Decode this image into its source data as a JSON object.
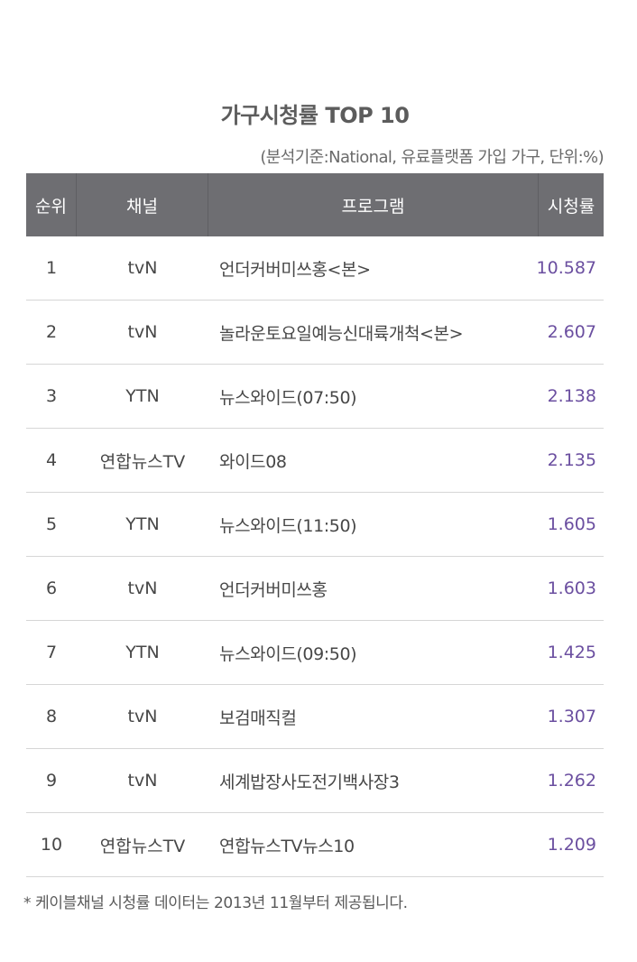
{
  "title": "가구시청률 TOP 10",
  "subtitle": "(분석기준:National, 유료플랫폼 가입 가구, 단위:%)",
  "table": {
    "headers": {
      "rank": "순위",
      "channel": "채널",
      "program": "프로그램",
      "rating": "시청률"
    },
    "rows": [
      {
        "rank": "1",
        "channel": "tvN",
        "program": "언더커버미쓰홍<본>",
        "rating": "10.587"
      },
      {
        "rank": "2",
        "channel": "tvN",
        "program": "놀라운토요일예능신대륙개척<본>",
        "rating": "2.607"
      },
      {
        "rank": "3",
        "channel": "YTN",
        "program": "뉴스와이드(07:50)",
        "rating": "2.138"
      },
      {
        "rank": "4",
        "channel": "연합뉴스TV",
        "program": "와이드08",
        "rating": "2.135"
      },
      {
        "rank": "5",
        "channel": "YTN",
        "program": "뉴스와이드(11:50)",
        "rating": "1.605"
      },
      {
        "rank": "6",
        "channel": "tvN",
        "program": "언더커버미쓰홍",
        "rating": "1.603"
      },
      {
        "rank": "7",
        "channel": "YTN",
        "program": "뉴스와이드(09:50)",
        "rating": "1.425"
      },
      {
        "rank": "8",
        "channel": "tvN",
        "program": "보검매직컬",
        "rating": "1.307"
      },
      {
        "rank": "9",
        "channel": "tvN",
        "program": "세계밥장사도전기백사장3",
        "rating": "1.262"
      },
      {
        "rank": "10",
        "channel": "연합뉴스TV",
        "program": "연합뉴스TV뉴스10",
        "rating": "1.209"
      }
    ]
  },
  "footnote": "* 케이블채널 시청률 데이터는 2013년 11월부터 제공됩니다.",
  "colors": {
    "header_bg": "#6e6e72",
    "rating_text": "#6b4fa0",
    "divider": "#d6d6d6"
  }
}
